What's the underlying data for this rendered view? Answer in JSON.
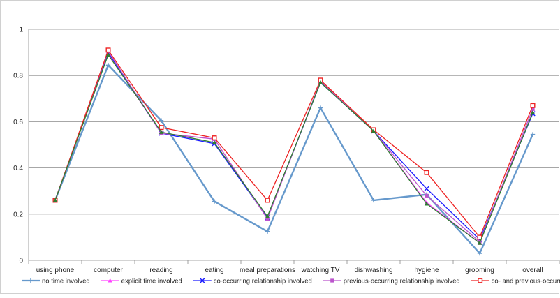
{
  "chart_data": {
    "type": "line",
    "title": "",
    "xlabel": "",
    "ylabel": "",
    "ylim": [
      0,
      1
    ],
    "yticks": [
      "0",
      "0.2",
      "0.4",
      "0.6",
      "0.8",
      "1"
    ],
    "grid": true,
    "legend_placement": "bottom",
    "categories": [
      "using phone",
      "computer",
      "reading",
      "eating",
      "meal preparations",
      "watching TV",
      "dishwashing",
      "hygiene",
      "grooming",
      "overall"
    ],
    "series": [
      {
        "name": "no time involved",
        "color": "#6699cc",
        "marker": "plus",
        "values": [
          0.26,
          0.845,
          0.605,
          0.255,
          0.125,
          0.66,
          0.26,
          0.285,
          0.03,
          0.545
        ]
      },
      {
        "name": "explicit time involved",
        "color": "#ff44ff",
        "marker": "triangle",
        "values": [
          0.26,
          0.895,
          0.55,
          0.525,
          0.18,
          0.775,
          0.56,
          0.25,
          0.075,
          0.655
        ]
      },
      {
        "name": "co-occurring relationship involved",
        "color": "#1a1aff",
        "marker": "x",
        "values": [
          0.26,
          0.9,
          0.55,
          0.505,
          0.185,
          0.77,
          0.56,
          0.31,
          0.09,
          0.635
        ]
      },
      {
        "name": "previous-occurring relationship involved",
        "color": "#bb55cc",
        "marker": "square",
        "values": [
          0.26,
          0.905,
          0.55,
          0.525,
          0.18,
          0.775,
          0.56,
          0.28,
          0.08,
          0.655
        ]
      },
      {
        "name": "co- and previous-occurring relationship involved",
        "color": "#ee2222",
        "marker": "hollow-square",
        "values": [
          0.26,
          0.91,
          0.575,
          0.53,
          0.26,
          0.78,
          0.565,
          0.38,
          0.1,
          0.67
        ]
      },
      {
        "name": "",
        "color": "#2e7d32",
        "marker": "triangle",
        "values": [
          0.26,
          0.89,
          0.555,
          0.51,
          0.19,
          0.77,
          0.56,
          0.245,
          0.075,
          0.64
        ]
      }
    ]
  }
}
